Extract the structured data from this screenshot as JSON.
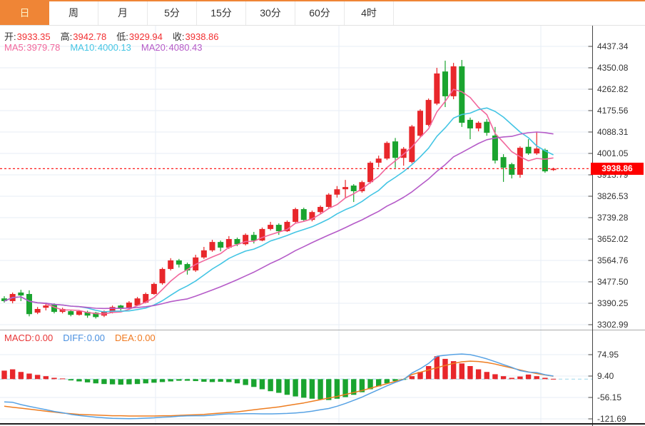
{
  "tabs": [
    {
      "id": "day",
      "label": "日",
      "active": true
    },
    {
      "id": "week",
      "label": "周",
      "active": false
    },
    {
      "id": "month",
      "label": "月",
      "active": false
    },
    {
      "id": "5min",
      "label": "5分",
      "active": false
    },
    {
      "id": "15min",
      "label": "15分",
      "active": false
    },
    {
      "id": "30min",
      "label": "30分",
      "active": false
    },
    {
      "id": "60min",
      "label": "60分",
      "active": false
    },
    {
      "id": "4hour",
      "label": "4时",
      "active": false
    }
  ],
  "ohlc": {
    "items": [
      {
        "name": "open",
        "label": "开:",
        "value": "3933.35"
      },
      {
        "name": "high",
        "label": "高:",
        "value": "3942.78"
      },
      {
        "name": "low",
        "label": "低:",
        "value": "3929.94"
      },
      {
        "name": "close",
        "label": "收:",
        "value": "3938.86"
      }
    ],
    "value_color": "#f22f31"
  },
  "ma_legend": {
    "items": [
      {
        "name": "ma5",
        "label": "MA5:",
        "value": "3979.78",
        "color": "#f2679c"
      },
      {
        "name": "ma10",
        "label": "MA10:",
        "value": "4000.13",
        "color": "#43c5e4"
      },
      {
        "name": "ma20",
        "label": "MA20:",
        "value": "4080.43",
        "color": "#b55bc8"
      }
    ]
  },
  "macd_legend": {
    "items": [
      {
        "name": "macd",
        "label": "MACD:",
        "value": "0.00",
        "color": "#e83536"
      },
      {
        "name": "diff",
        "label": "DIFF:",
        "value": "0.00",
        "color": "#4a90e0"
      },
      {
        "name": "dea",
        "label": "DEA:",
        "value": "0.00",
        "color": "#f0791f"
      }
    ]
  },
  "price_marker": {
    "value": "3938.86"
  },
  "colors": {
    "up": "#e8272b",
    "down": "#1aa42f",
    "ma5": "#f2679c",
    "ma10": "#43c5e4",
    "ma20": "#b55bc8",
    "diff_line": "#57a2e4",
    "dea_line": "#ee7d20",
    "grid": "#e7eef6",
    "axis": "#444444",
    "tick_text": "#333333",
    "price_line": "#fe1c1c",
    "zero_dashed": "#a8dcee",
    "tab_active_bg": "#ef8536"
  },
  "chart_data": {
    "type": "candlestick",
    "main": {
      "title": "",
      "y_ticks": [
        "4437.34",
        "4350.08",
        "4262.82",
        "4175.56",
        "4088.31",
        "4001.05",
        "3913.79",
        "3826.53",
        "3739.28",
        "3652.02",
        "3564.76",
        "3477.50",
        "3390.25",
        "3302.99"
      ],
      "last_price": "3938.86",
      "ma_windows": [
        5,
        10,
        20
      ],
      "ma_displayed": {
        "ma5": "3979.78",
        "ma10": "4000.13",
        "ma20": "4080.43"
      },
      "candles_format": [
        "open",
        "high",
        "low",
        "close"
      ],
      "candles": [
        [
          3410,
          3419,
          3393,
          3399
        ],
        [
          3399,
          3434,
          3390,
          3428
        ],
        [
          3434,
          3445,
          3399,
          3422
        ],
        [
          3428,
          3443,
          3337,
          3346
        ],
        [
          3352,
          3375,
          3346,
          3367
        ],
        [
          3372,
          3393,
          3361,
          3381
        ],
        [
          3384,
          3390,
          3349,
          3355
        ],
        [
          3355,
          3372,
          3349,
          3367
        ],
        [
          3358,
          3363,
          3337,
          3343
        ],
        [
          3343,
          3363,
          3340,
          3358
        ],
        [
          3355,
          3360,
          3331,
          3340
        ],
        [
          3352,
          3355,
          3328,
          3334
        ],
        [
          3340,
          3361,
          3334,
          3358
        ],
        [
          3352,
          3381,
          3349,
          3375
        ],
        [
          3381,
          3384,
          3361,
          3367
        ],
        [
          3369,
          3399,
          3364,
          3393
        ],
        [
          3381,
          3416,
          3378,
          3410
        ],
        [
          3393,
          3434,
          3390,
          3428
        ],
        [
          3428,
          3475,
          3425,
          3469
        ],
        [
          3472,
          3536,
          3466,
          3530
        ],
        [
          3530,
          3574,
          3524,
          3565
        ],
        [
          3565,
          3571,
          3536,
          3548
        ],
        [
          3550,
          3556,
          3507,
          3524
        ],
        [
          3524,
          3588,
          3518,
          3577
        ],
        [
          3577,
          3620,
          3571,
          3606
        ],
        [
          3606,
          3649,
          3600,
          3640
        ],
        [
          3640,
          3646,
          3602,
          3617
        ],
        [
          3617,
          3664,
          3612,
          3652
        ],
        [
          3652,
          3658,
          3623,
          3631
        ],
        [
          3631,
          3675,
          3626,
          3669
        ],
        [
          3669,
          3681,
          3634,
          3646
        ],
        [
          3646,
          3699,
          3643,
          3693
        ],
        [
          3693,
          3722,
          3687,
          3710
        ],
        [
          3710,
          3716,
          3669,
          3684
        ],
        [
          3684,
          3728,
          3681,
          3722
        ],
        [
          3722,
          3780,
          3716,
          3774
        ],
        [
          3774,
          3780,
          3724,
          3730
        ],
        [
          3730,
          3768,
          3724,
          3762
        ],
        [
          3762,
          3789,
          3753,
          3783
        ],
        [
          3783,
          3839,
          3777,
          3833
        ],
        [
          3833,
          3868,
          3821,
          3855
        ],
        [
          3855,
          3893,
          3820,
          3864
        ],
        [
          3870,
          3876,
          3803,
          3847
        ],
        [
          3847,
          3890,
          3841,
          3884
        ],
        [
          3884,
          3969,
          3878,
          3963
        ],
        [
          3963,
          3992,
          3945,
          3980
        ],
        [
          3980,
          4050,
          3974,
          4044
        ],
        [
          4050,
          4064,
          3942,
          3983
        ],
        [
          3983,
          4027,
          3951,
          4020
        ],
        [
          3966,
          4117,
          3960,
          4111
        ],
        [
          4073,
          4181,
          4067,
          4175
        ],
        [
          4117,
          4225,
          4111,
          4219
        ],
        [
          4204,
          4350,
          4198,
          4327
        ],
        [
          4335,
          4379,
          4190,
          4234
        ],
        [
          4234,
          4370,
          4222,
          4356
        ],
        [
          4356,
          4382,
          4109,
          4126
        ],
        [
          4138,
          4147,
          4059,
          4103
        ],
        [
          4103,
          4132,
          4091,
          4126
        ],
        [
          4130,
          4141,
          4073,
          4085
        ],
        [
          4074,
          4109,
          3960,
          3972
        ],
        [
          3986,
          3998,
          3885,
          3943
        ],
        [
          3957,
          3963,
          3899,
          3914
        ],
        [
          3914,
          4030,
          3902,
          4024
        ],
        [
          4028,
          4059,
          3995,
          4001
        ],
        [
          4001,
          4088,
          3995,
          4021
        ],
        [
          4015,
          4021,
          3922,
          3928
        ],
        [
          3933.35,
          3942.78,
          3929.94,
          3938.86
        ]
      ]
    },
    "macd": {
      "y_ticks": [
        "74.95",
        "9.40",
        "-56.15",
        "-121.69"
      ],
      "hist": [
        26,
        30,
        22,
        17,
        13,
        9,
        4,
        2,
        -4,
        -7,
        -10,
        -13,
        -15,
        -16,
        -17,
        -16,
        -15,
        -13,
        -11,
        -9,
        -7,
        -5,
        -5,
        -6,
        -8,
        -9,
        -8,
        -9,
        -13,
        -18,
        -24,
        -31,
        -37,
        -42,
        -48,
        -53,
        -57,
        -60,
        -62,
        -64,
        -60,
        -55,
        -48,
        -40,
        -31,
        -22,
        -13,
        -6,
        -2,
        9,
        22,
        40,
        70,
        62,
        55,
        48,
        40,
        30,
        22,
        15,
        9,
        4,
        8,
        14,
        9,
        4,
        1
      ],
      "diff": [
        -70,
        -71,
        -78,
        -83.5,
        -88.5,
        -93.5,
        -99,
        -103,
        -108,
        -111.5,
        -114,
        -116.5,
        -118.5,
        -120,
        -120.5,
        -121,
        -120.5,
        -119.5,
        -118.5,
        -116.5,
        -115.5,
        -113.5,
        -112.5,
        -112,
        -112,
        -110.5,
        -108,
        -106.5,
        -106.5,
        -106,
        -106,
        -106.5,
        -106.5,
        -106,
        -105,
        -103.5,
        -101.5,
        -98,
        -94,
        -90,
        -83,
        -74.5,
        -65,
        -55,
        -43.5,
        -32,
        -20.5,
        -10,
        -1,
        18.5,
        32,
        48,
        70,
        73,
        75.5,
        77,
        75,
        69,
        62,
        53.5,
        44.5,
        36,
        26,
        21.5,
        20,
        13.5,
        9.5
      ],
      "dea": [
        -83,
        -86,
        -89,
        -92,
        -95,
        -98,
        -101,
        -104,
        -106,
        -108,
        -109,
        -110,
        -111,
        -112,
        -112,
        -113,
        -113,
        -113,
        -113,
        -112,
        -112,
        -111,
        -110,
        -109,
        -108,
        -106,
        -104,
        -102,
        -100,
        -97,
        -94,
        -91,
        -88,
        -85,
        -81,
        -77,
        -73,
        -68,
        -63,
        -58,
        -53,
        -47,
        -41,
        -35,
        -28,
        -21,
        -14,
        -7,
        0,
        14,
        21,
        28,
        35,
        42,
        48,
        53,
        55,
        54,
        51,
        46,
        40,
        34,
        28,
        22,
        17,
        13,
        9
      ]
    }
  }
}
